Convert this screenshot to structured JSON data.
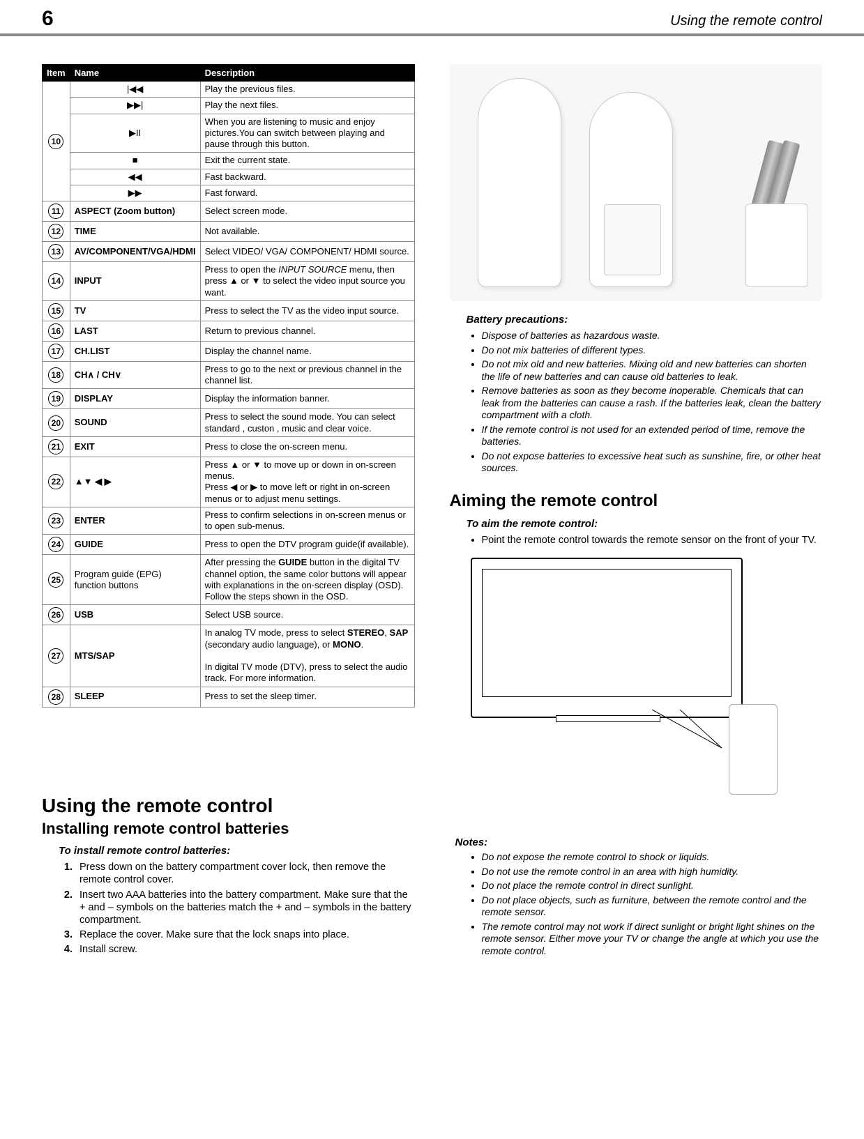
{
  "page": {
    "number": "6",
    "title": "Using the remote control"
  },
  "table": {
    "headers": {
      "item": "Item",
      "name": "Name",
      "desc": "Description"
    },
    "rows": [
      {
        "item": "10",
        "subrows": [
          {
            "name": "|◀◀",
            "desc": "Play the previous files."
          },
          {
            "name": "▶▶|",
            "desc": "Play the next files."
          },
          {
            "name": "▶II",
            "desc": "When you are listening to music and enjoy pictures.You can switch between playing and pause through this button."
          },
          {
            "name": "■",
            "desc": "Exit the current state."
          },
          {
            "name": "◀◀",
            "desc": "Fast backward."
          },
          {
            "name": "▶▶",
            "desc": "Fast forward."
          }
        ]
      },
      {
        "item": "11",
        "name": "ASPECT (Zoom button)",
        "desc": "Select screen mode."
      },
      {
        "item": "12",
        "name": "TIME",
        "desc": "Not available."
      },
      {
        "item": "13",
        "name": "AV/COMPONENT/VGA/HDMI",
        "desc": "Select VIDEO/ VGA/ COMPONENT/ HDMI source."
      },
      {
        "item": "14",
        "name": "INPUT",
        "desc_html": "Press to open the <i>INPUT SOURCE</i> menu, then press ▲ or ▼ to select the video input source you want."
      },
      {
        "item": "15",
        "name": "TV",
        "desc": "Press to select the TV as the video input source."
      },
      {
        "item": "16",
        "name": "LAST",
        "desc": "Return to previous channel."
      },
      {
        "item": "17",
        "name": "CH.LIST",
        "desc": "Display the channel name."
      },
      {
        "item": "18",
        "name": "CH∧ / CH∨",
        "desc": "Press to go to the next or previous channel in the channel list."
      },
      {
        "item": "19",
        "name": "DISPLAY",
        "desc": "Display the information banner."
      },
      {
        "item": "20",
        "name": "SOUND",
        "desc": "Press to select the sound mode. You can select standard , custon , music and clear voice."
      },
      {
        "item": "21",
        "name": "EXIT",
        "desc": "Press to close the on-screen menu."
      },
      {
        "item": "22",
        "name": "▲▼ ◀ ▶",
        "desc": "Press ▲ or ▼ to move up or down in on-screen menus.\nPress ◀ or ▶ to move left or right in on-screen menus or to adjust menu settings."
      },
      {
        "item": "23",
        "name": "ENTER",
        "desc": "Press to confirm selections in on-screen menus or to open sub-menus."
      },
      {
        "item": "24",
        "name": "GUIDE",
        "desc": "Press to open the DTV program guide(if available)."
      },
      {
        "item": "25",
        "name": "Program guide (EPG) function buttons",
        "name_plain": true,
        "desc_html": "After pressing the <b>GUIDE</b> button in the digital TV channel option, the same color buttons will appear with explanations in the on-screen display (OSD). Follow the steps shown in the OSD."
      },
      {
        "item": "26",
        "name": "USB",
        "desc": "Select USB source."
      },
      {
        "item": "27",
        "name": "MTS/SAP",
        "desc_html": "In analog TV mode, press to select <b>STEREO</b>, <b>SAP</b> (secondary audio language), or <b>MONO</b>.<br><br>In digital TV mode (DTV), press to select the audio track. For more information."
      },
      {
        "item": "28",
        "name": "SLEEP",
        "desc": "Press to set the sleep timer."
      }
    ]
  },
  "battery": {
    "heading": "Battery precautions:",
    "items": [
      "Dispose of batteries as hazardous waste.",
      "Do not mix batteries of different types.",
      "Do not mix old and new batteries. Mixing old and new batteries can shorten the life of new batteries and can cause old batteries to leak.",
      "Remove batteries as soon as they become inoperable. Chemicals that can leak from the batteries can cause a rash. If the batteries leak, clean the battery compartment with a cloth.",
      "If the remote control is not used for an extended period of time, remove the batteries.",
      "Do not expose batteries to excessive heat such as sunshine, fire, or other heat sources."
    ]
  },
  "aiming": {
    "heading": "Aiming the remote control",
    "subhead": "To aim the remote control:",
    "bullet": "Point the remote control towards the remote sensor on the front of your TV."
  },
  "using": {
    "heading": "Using the remote control",
    "subheading": "Installing remote control batteries",
    "stepsHead": "To install remote control batteries:",
    "steps": [
      "Press down on the battery compartment cover lock, then remove the remote control cover.",
      "Insert two AAA batteries into the battery compartment. Make sure that the + and – symbols on the batteries match the + and – symbols in the battery compartment.",
      "Replace the cover. Make sure that the lock snaps into place.",
      "Install screw."
    ]
  },
  "notes": {
    "heading": "Notes:",
    "items": [
      "Do not expose the remote control to shock or liquids.",
      "Do not use the remote control in an area with high humidity.",
      "Do not place the remote control in direct sunlight.",
      "Do not place objects, such as furniture, between the remote control and the remote sensor.",
      "The remote control may not work if direct sunlight or bright light shines on the remote sensor. Either move your TV or change the angle at which you use the remote control."
    ]
  }
}
